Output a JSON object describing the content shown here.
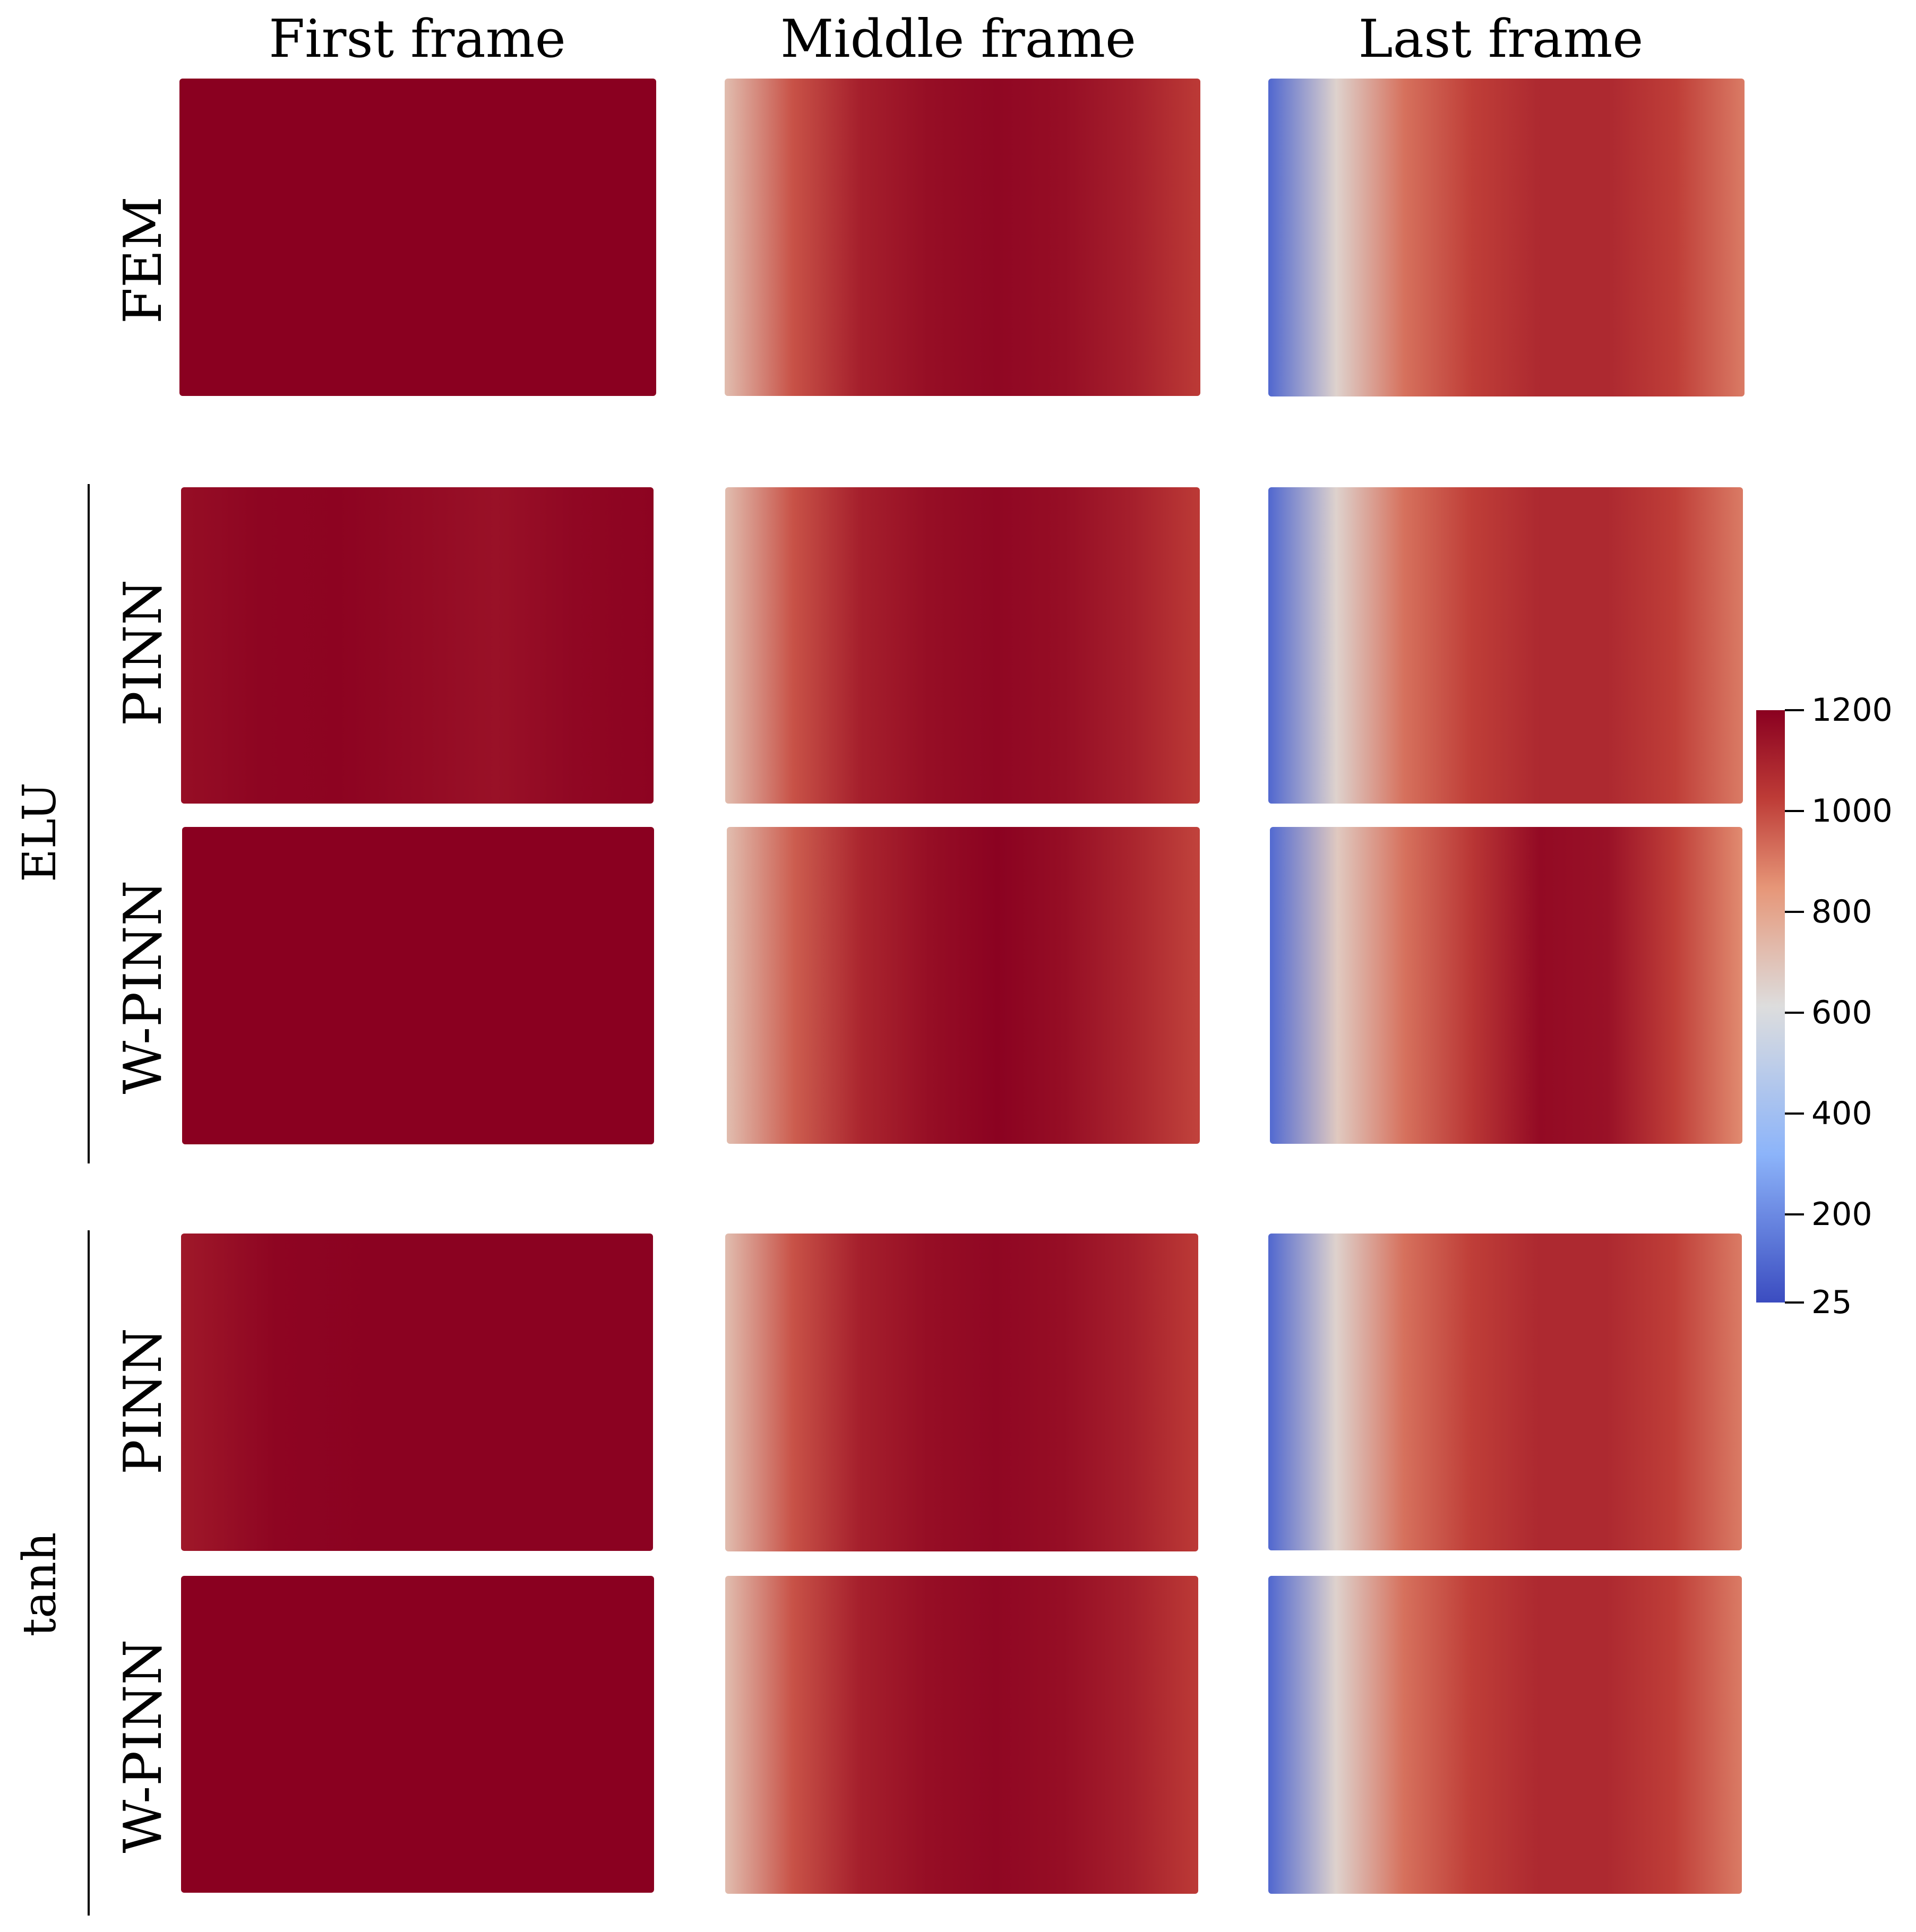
{
  "columns": [
    "First frame",
    "Middle frame",
    "Last frame"
  ],
  "groups": [
    {
      "label": "ELU"
    },
    {
      "label": "tanh"
    }
  ],
  "rows": [
    {
      "label": "FEM",
      "frames": [
        "uniform",
        "middle",
        "last"
      ]
    },
    {
      "label": "PINN",
      "frames": [
        "first_pinn_elu",
        "middle",
        "last"
      ]
    },
    {
      "label": "W-PINN",
      "frames": [
        "uniform",
        "middle_wpinn_elu",
        "last_wpinn_elu"
      ]
    },
    {
      "label": "PINN",
      "frames": [
        "first_pinn_tanh",
        "middle",
        "last"
      ]
    },
    {
      "label": "W-PINN",
      "frames": [
        "uniform",
        "middle",
        "last"
      ]
    }
  ],
  "colorbar": {
    "colormap": "coolwarm",
    "min": 25,
    "max": 1200,
    "ticks": [
      "1200",
      "1000",
      "800",
      "600",
      "400",
      "200",
      "25"
    ],
    "tick_values": [
      1200,
      1000,
      800,
      600,
      400,
      200,
      25
    ],
    "colors": {
      "low": "#3b4cc0",
      "mid": "#dddddd",
      "high": "#8a0020"
    }
  },
  "field_profiles": {
    "uniform": [
      1200,
      1200
    ],
    "first_pinn_elu": [
      1160,
      1185,
      1190,
      1170,
      1150,
      1180,
      1190
    ],
    "first_pinn_tanh": [
      1130,
      1185,
      1195,
      1195,
      1195,
      1195
    ],
    "middle": [
      720,
      980,
      1110,
      1160,
      1180,
      1160,
      1110,
      1030
    ],
    "middle_wpinn_elu": [
      720,
      960,
      1090,
      1160,
      1195,
      1160,
      1090,
      1010
    ],
    "last": [
      100,
      650,
      920,
      1020,
      1080,
      1080,
      1020,
      900
    ],
    "last_wpinn_elu": [
      110,
      680,
      920,
      1040,
      1170,
      1150,
      1020,
      870
    ]
  }
}
